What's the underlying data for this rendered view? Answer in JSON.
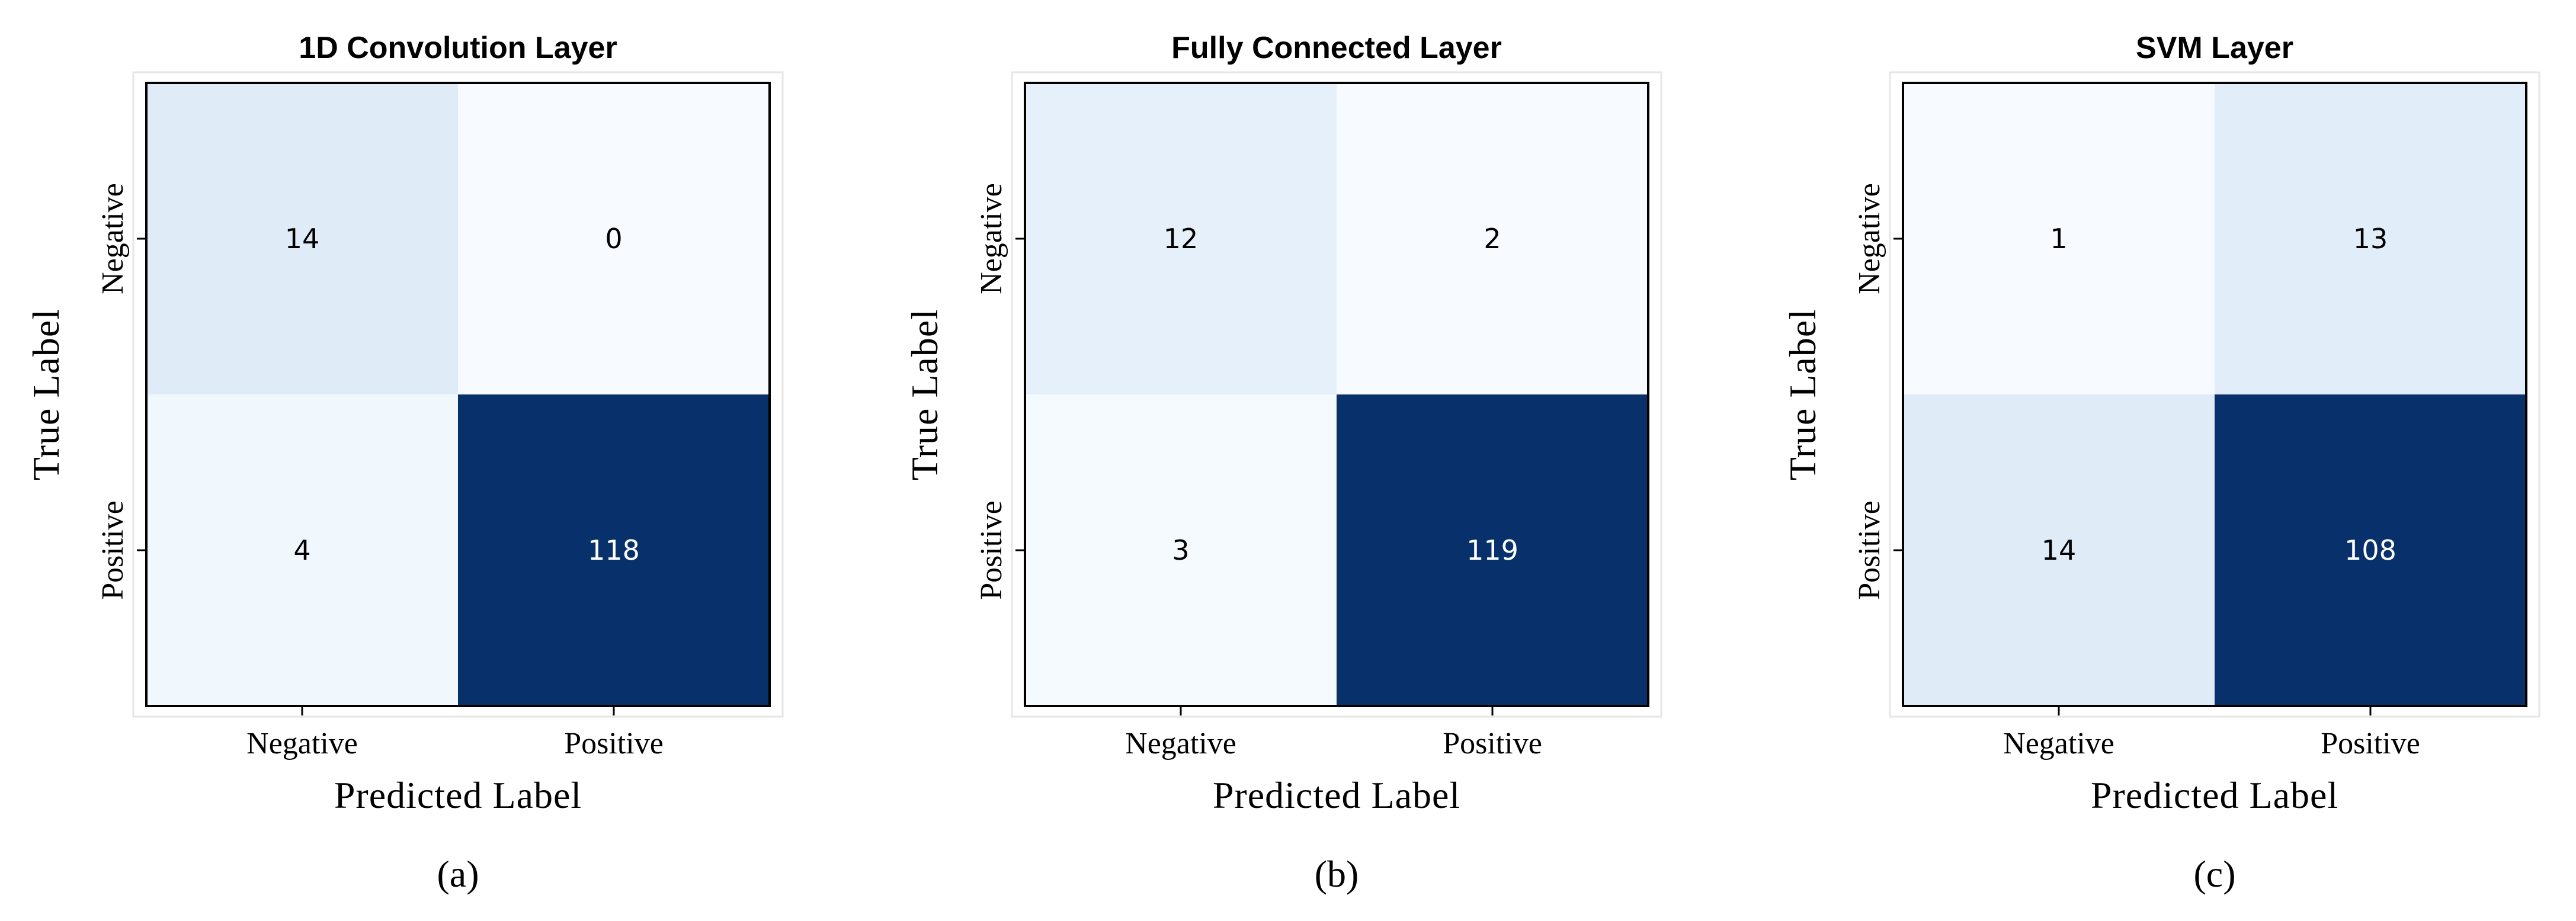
{
  "chart_data": [
    {
      "type": "heatmap",
      "title": "1D Convolution Layer",
      "caption": "(a)",
      "xlabel": "Predicted Label",
      "ylabel": "True Label",
      "x_categories": [
        "Negative",
        "Positive"
      ],
      "y_categories": [
        "Negative",
        "Positive"
      ],
      "values": [
        [
          14,
          0
        ],
        [
          4,
          118
        ]
      ],
      "colormap": "Blues",
      "grid": false
    },
    {
      "type": "heatmap",
      "title": "Fully Connected Layer",
      "caption": "(b)",
      "xlabel": "Predicted Label",
      "ylabel": "True Label",
      "x_categories": [
        "Negative",
        "Positive"
      ],
      "y_categories": [
        "Negative",
        "Positive"
      ],
      "values": [
        [
          12,
          2
        ],
        [
          3,
          119
        ]
      ],
      "colormap": "Blues",
      "grid": false
    },
    {
      "type": "heatmap",
      "title": "SVM Layer",
      "caption": "(c)",
      "xlabel": "Predicted Label",
      "ylabel": "True Label",
      "x_categories": [
        "Negative",
        "Positive"
      ],
      "y_categories": [
        "Negative",
        "Positive"
      ],
      "values": [
        [
          1,
          13
        ],
        [
          14,
          108
        ]
      ],
      "colormap": "Blues",
      "grid": false
    }
  ]
}
